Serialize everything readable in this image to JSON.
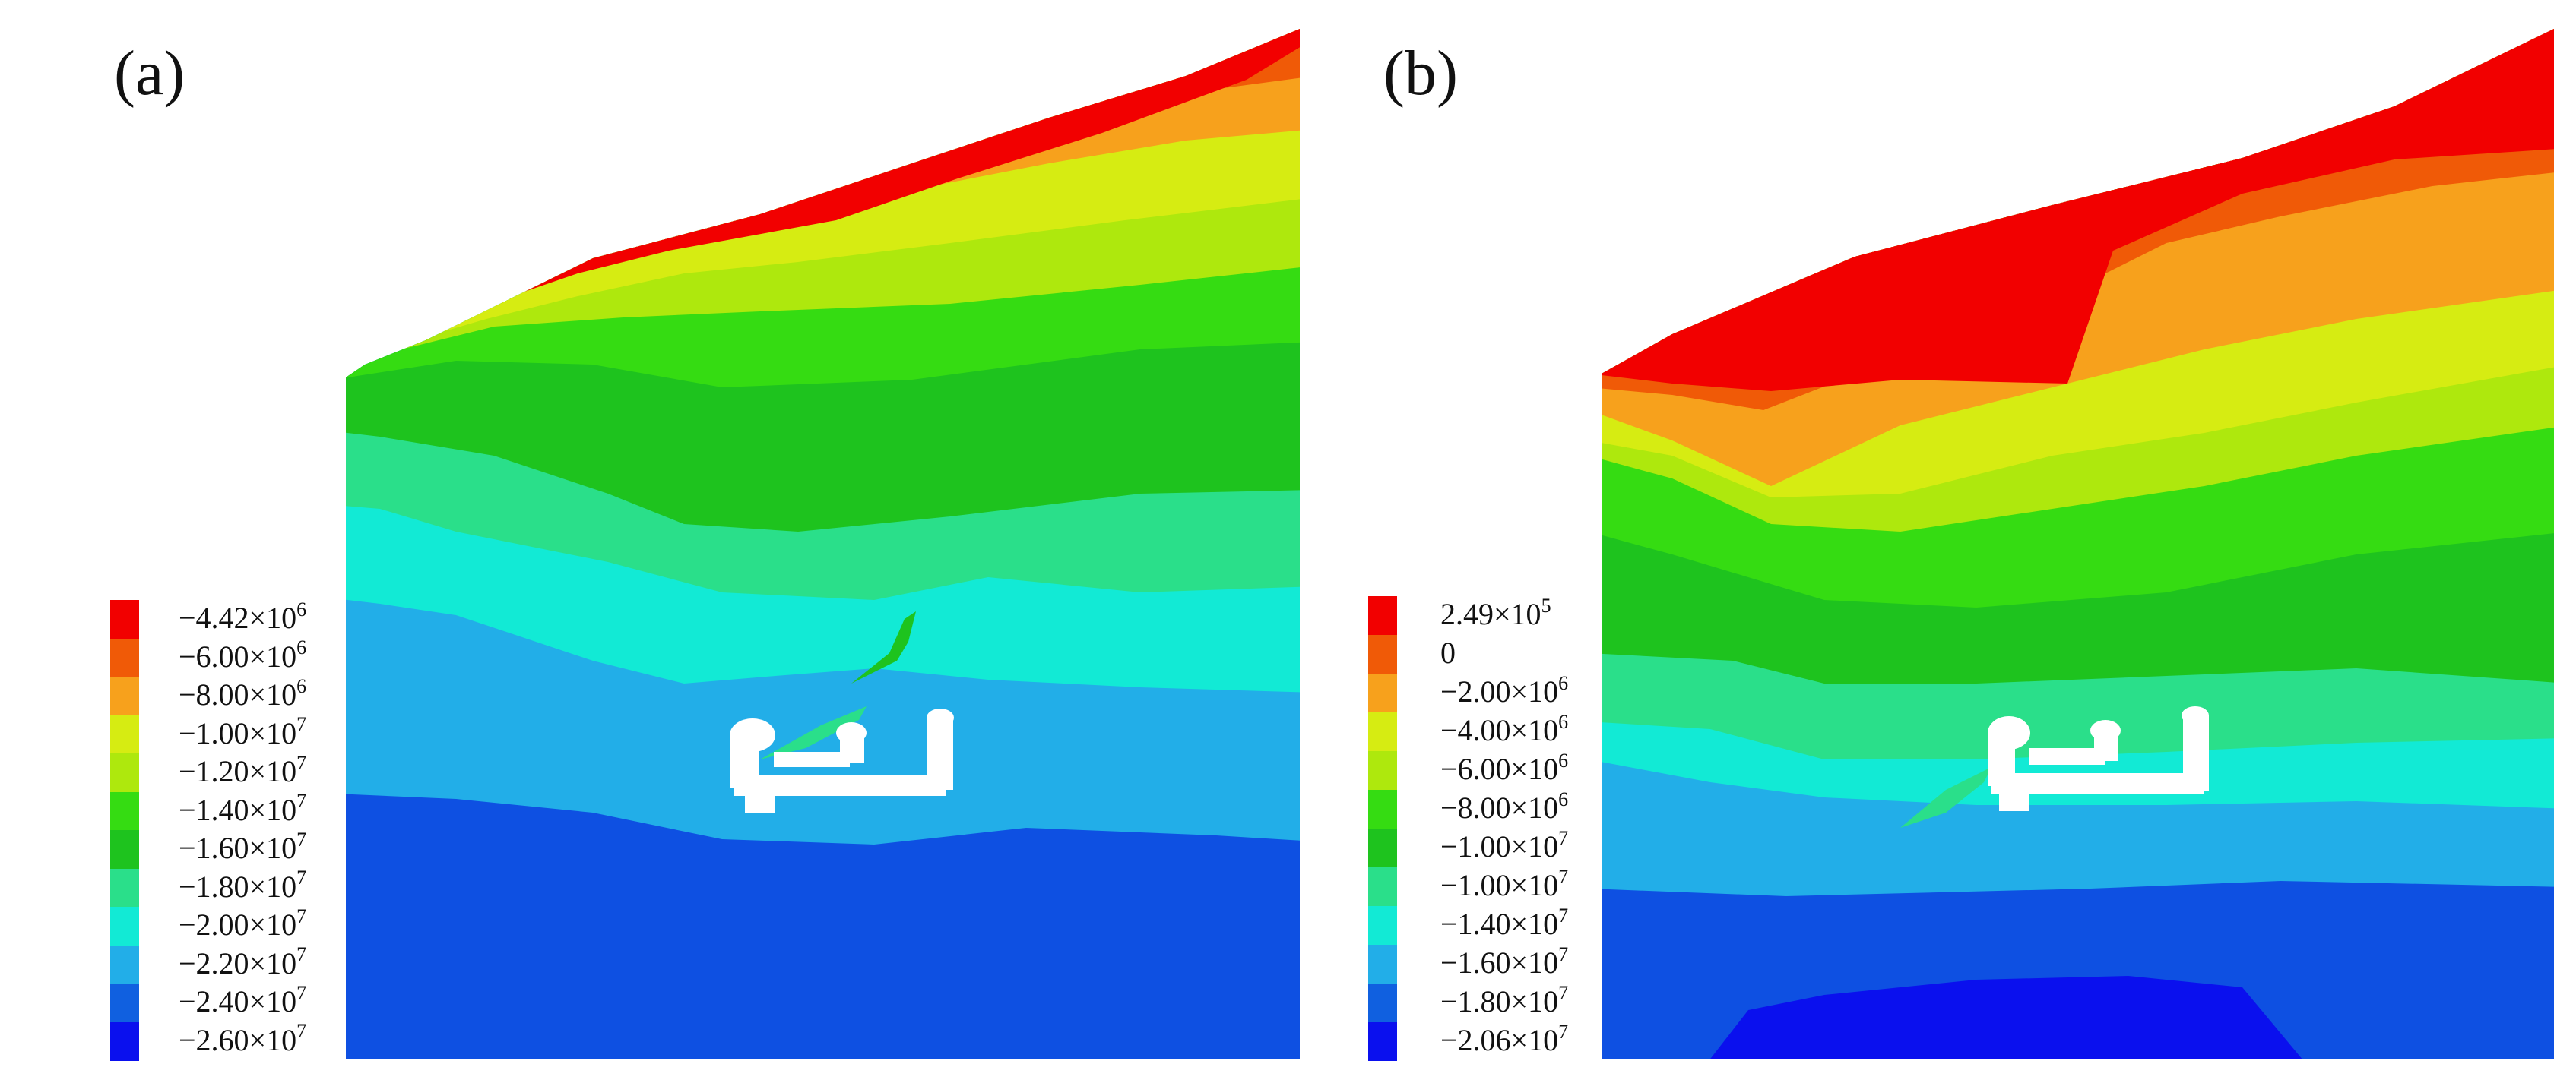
{
  "panels": [
    {
      "label": "(a)",
      "legend": [
        {
          "mantissa": "−4.42×10",
          "exp": "6",
          "color": "#f20000"
        },
        {
          "mantissa": "−6.00×10",
          "exp": "6",
          "color": "#f05a07"
        },
        {
          "mantissa": "−8.00×10",
          "exp": "6",
          "color": "#f7a11c"
        },
        {
          "mantissa": "−1.00×10",
          "exp": "7",
          "color": "#d6ec12"
        },
        {
          "mantissa": "−1.20×10",
          "exp": "7",
          "color": "#aee80d"
        },
        {
          "mantissa": "−1.40×10",
          "exp": "7",
          "color": "#35dc12"
        },
        {
          "mantissa": "−1.60×10",
          "exp": "7",
          "color": "#1ec31e"
        },
        {
          "mantissa": "−1.80×10",
          "exp": "7",
          "color": "#2adf8a"
        },
        {
          "mantissa": "−2.00×10",
          "exp": "7",
          "color": "#12ead5"
        },
        {
          "mantissa": "−2.20×10",
          "exp": "7",
          "color": "#22aee8"
        },
        {
          "mantissa": "−2.40×10",
          "exp": "7",
          "color": "#1060e0"
        },
        {
          "mantissa": "−2.60×10",
          "exp": "7",
          "color": "#0a10ee"
        }
      ]
    },
    {
      "label": "(b)",
      "legend": [
        {
          "mantissa": "2.49×10",
          "exp": "5",
          "color": "#f20000"
        },
        {
          "mantissa": "0",
          "exp": "",
          "color": "#f05a07"
        },
        {
          "mantissa": "−2.00×10",
          "exp": "6",
          "color": "#f7a11c"
        },
        {
          "mantissa": "−4.00×10",
          "exp": "6",
          "color": "#d6ec12"
        },
        {
          "mantissa": "−6.00×10",
          "exp": "6",
          "color": "#aee80d"
        },
        {
          "mantissa": "−8.00×10",
          "exp": "6",
          "color": "#35dc12"
        },
        {
          "mantissa": "−1.00×10",
          "exp": "7",
          "color": "#1ec31e"
        },
        {
          "mantissa": "−1.00×10",
          "exp": "7",
          "color": "#2adf8a"
        },
        {
          "mantissa": "−1.40×10",
          "exp": "7",
          "color": "#12ead5"
        },
        {
          "mantissa": "−1.60×10",
          "exp": "7",
          "color": "#22aee8"
        },
        {
          "mantissa": "−1.80×10",
          "exp": "7",
          "color": "#1060e0"
        },
        {
          "mantissa": "−2.06×10",
          "exp": "7",
          "color": "#0a10ee"
        }
      ]
    }
  ]
}
